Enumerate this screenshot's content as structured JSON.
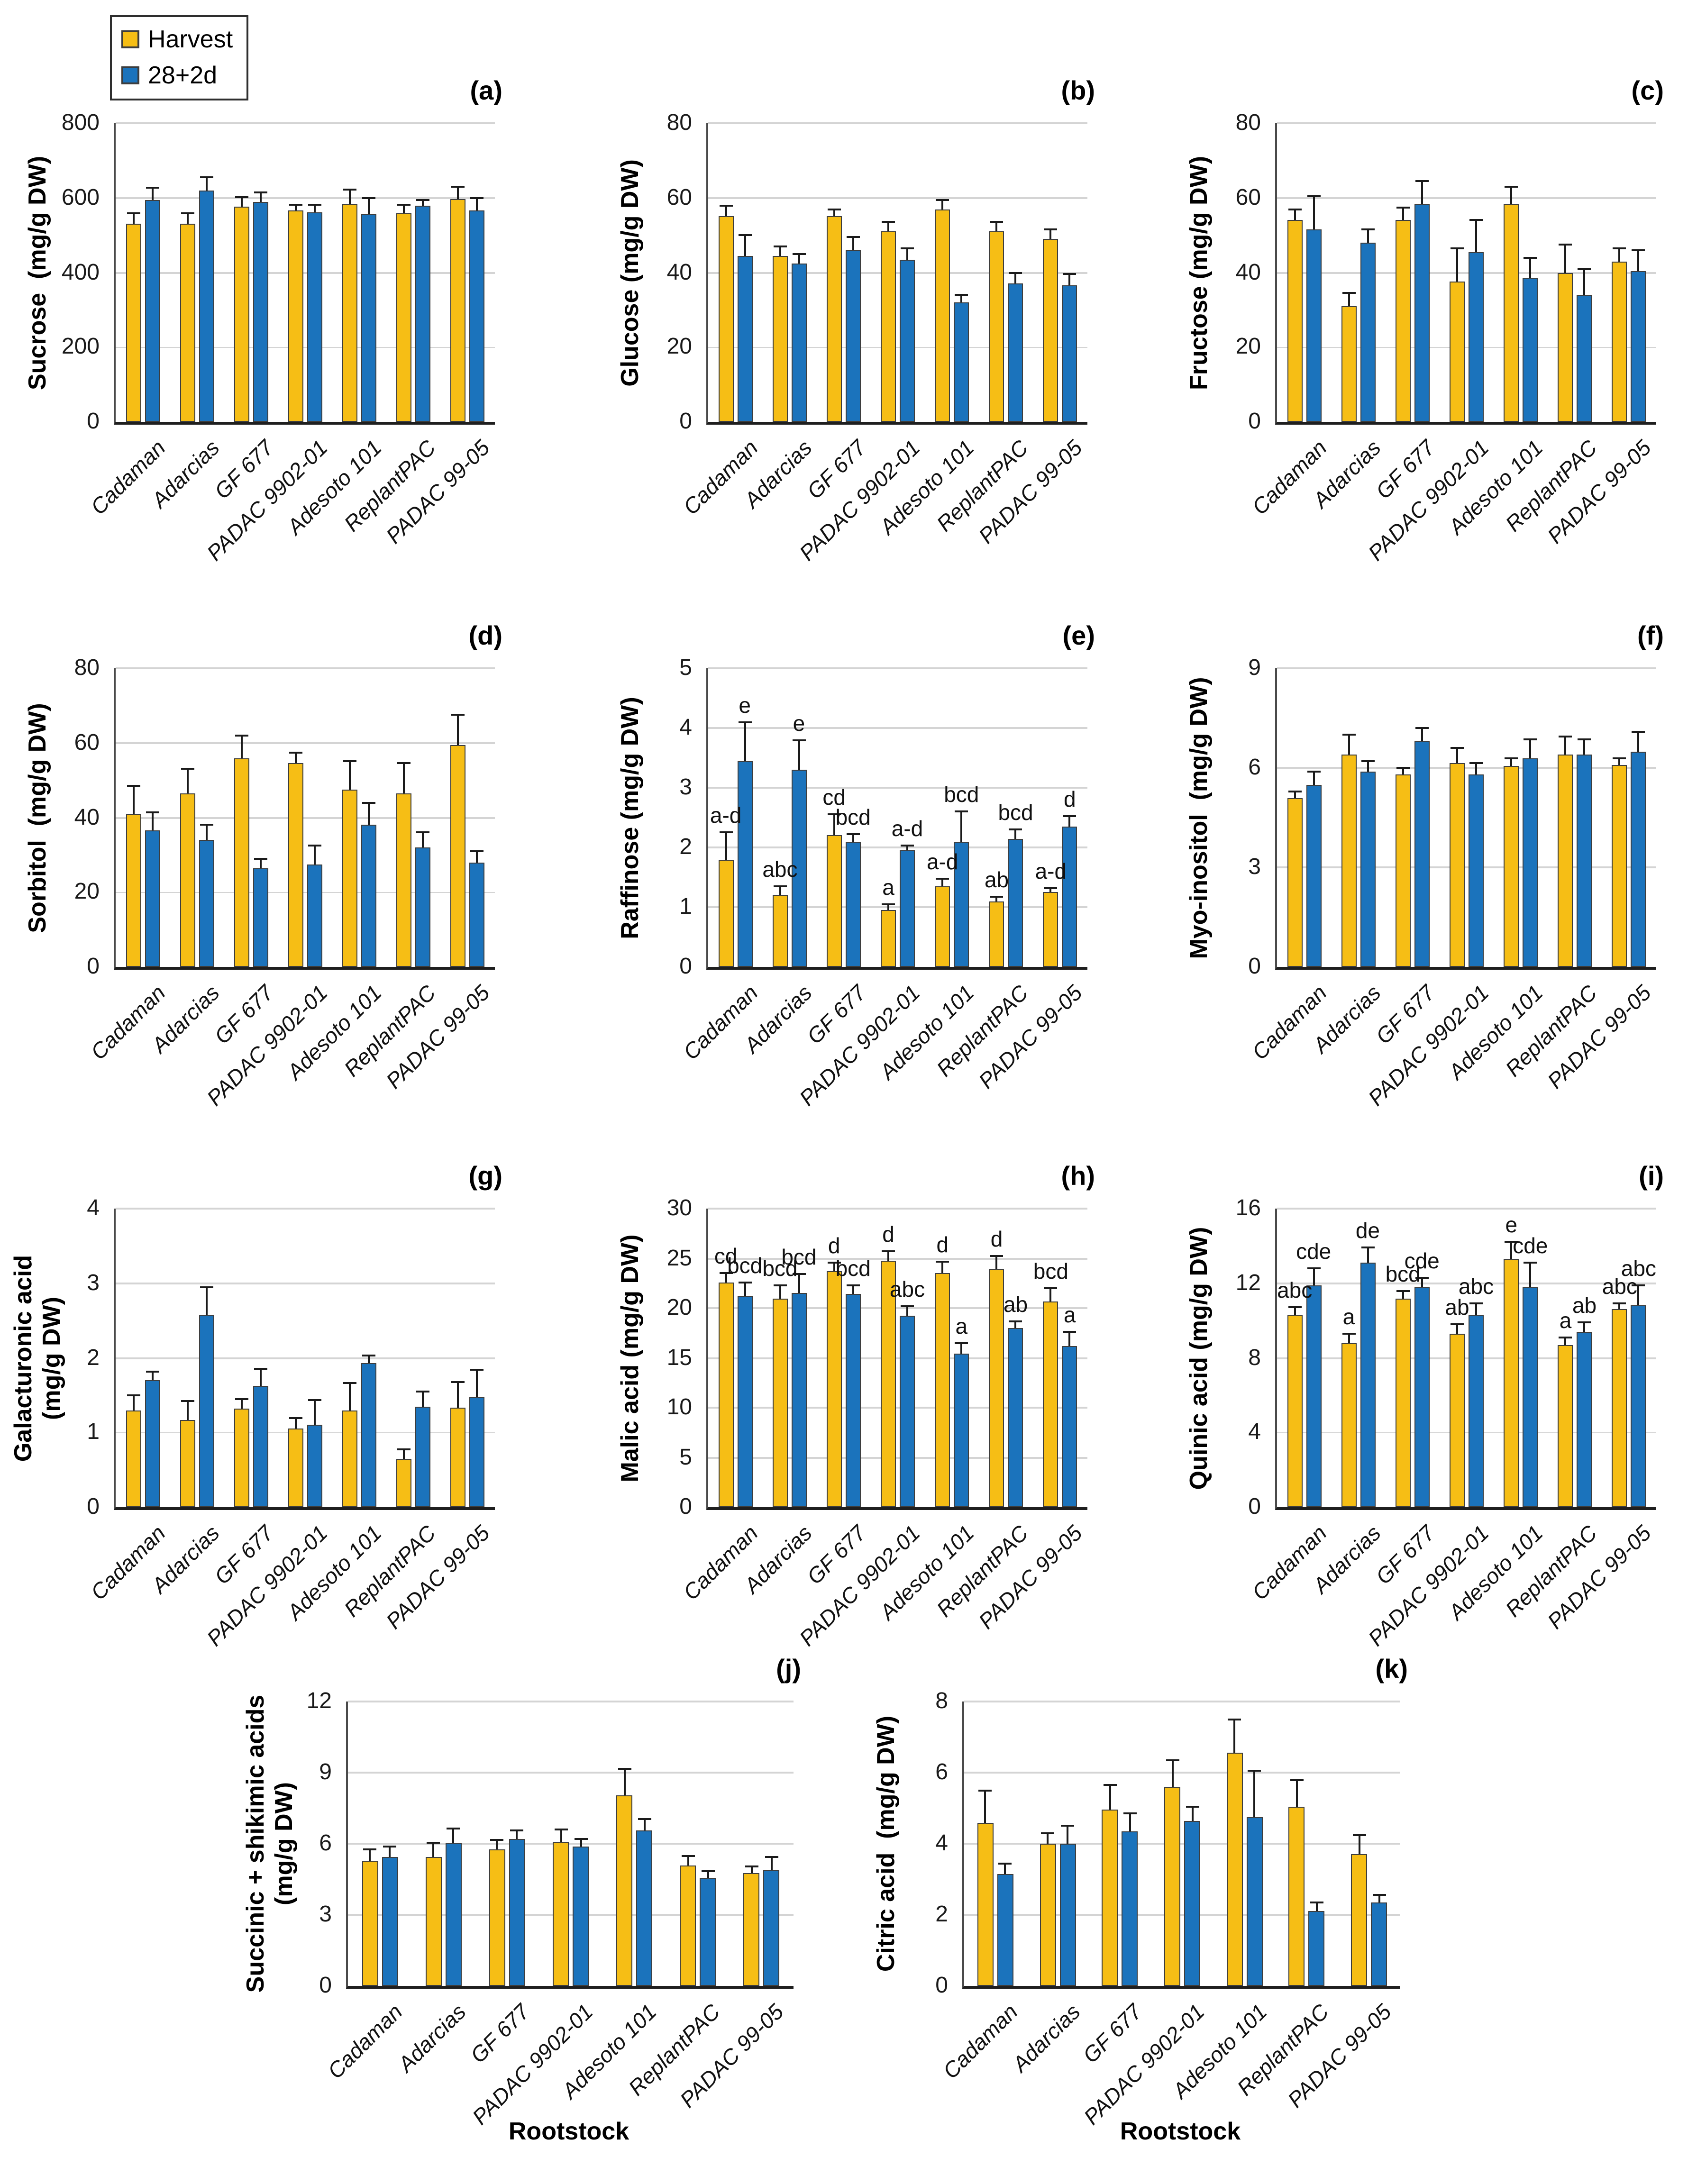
{
  "figure": {
    "background": "#ffffff"
  },
  "legend": {
    "items": [
      {
        "label": "Harvest",
        "color": "#F6BE15"
      },
      {
        "label": "28+2d",
        "color": "#1B73BC"
      }
    ]
  },
  "colors": {
    "harvest_bar": "#F6BE15",
    "day28_bar": "#1B73BC",
    "bar_border": "#3D3D3D",
    "gridline": "#D4D4D4",
    "axis": "#1F1F1F"
  },
  "categories": [
    "Cadaman",
    "Adarcias",
    "GF 677",
    "PADAC 9902-01",
    "Adesoto 101",
    "ReplantPAC",
    "PADAC 99-05"
  ],
  "xlabel": "Rootstock",
  "chart_data": [
    {
      "id": "a",
      "tag": "(a)",
      "type": "bar",
      "ylabel": "Sucrose  (mg/g DW)",
      "ylim": [
        0,
        800
      ],
      "yticks": [
        0,
        200,
        400,
        600,
        800
      ],
      "series": [
        {
          "name": "Harvest",
          "values": [
            530,
            532,
            577,
            566,
            585,
            560,
            597
          ],
          "errors": [
            30,
            28,
            25,
            15,
            37,
            22,
            33
          ]
        },
        {
          "name": "28+2d",
          "values": [
            595,
            620,
            590,
            562,
            555,
            580,
            567
          ],
          "errors": [
            33,
            35,
            25,
            20,
            45,
            15,
            32
          ]
        }
      ]
    },
    {
      "id": "b",
      "tag": "(b)",
      "type": "bar",
      "ylabel": "Glucose (mg/g DW)",
      "ylim": [
        0,
        80
      ],
      "yticks": [
        0,
        20,
        40,
        60,
        80
      ],
      "series": [
        {
          "name": "Harvest",
          "values": [
            55,
            44.5,
            55,
            51,
            57,
            51,
            49
          ],
          "errors": [
            3,
            2.5,
            2,
            2.5,
            2.5,
            2.5,
            2.5
          ]
        },
        {
          "name": "28+2d",
          "values": [
            44.5,
            42.5,
            46,
            43.5,
            32,
            37,
            36.5
          ],
          "errors": [
            5.5,
            2.5,
            3.5,
            3,
            2,
            3,
            3
          ]
        }
      ]
    },
    {
      "id": "c",
      "tag": "(c)",
      "type": "bar",
      "ylabel": "Fructose (mg/g DW)",
      "ylim": [
        0,
        80
      ],
      "yticks": [
        0,
        20,
        40,
        60,
        80
      ],
      "series": [
        {
          "name": "Harvest",
          "values": [
            54,
            31,
            54,
            37.5,
            58.5,
            40,
            43
          ],
          "errors": [
            3,
            3.5,
            3.5,
            9,
            4.5,
            7.5,
            3.5
          ]
        },
        {
          "name": "28+2d",
          "values": [
            51.5,
            48,
            58.5,
            45.5,
            38.5,
            34,
            40.5
          ],
          "errors": [
            9,
            3.5,
            6,
            8.5,
            5.5,
            7,
            5.5
          ]
        }
      ]
    },
    {
      "id": "d",
      "tag": "(d)",
      "type": "bar",
      "ylabel": "Sorbitol  (mg/g DW)",
      "ylim": [
        0,
        80
      ],
      "yticks": [
        0,
        20,
        40,
        60,
        80
      ],
      "series": [
        {
          "name": "Harvest",
          "values": [
            41,
            46.5,
            56,
            54.5,
            47.5,
            46.5,
            59.5
          ],
          "errors": [
            7.5,
            6.5,
            6,
            3,
            7.5,
            8,
            8
          ]
        },
        {
          "name": "28+2d",
          "values": [
            36.5,
            34,
            26.5,
            27.5,
            38,
            32,
            28
          ],
          "errors": [
            5,
            4,
            2.5,
            5,
            6,
            4,
            3
          ]
        }
      ]
    },
    {
      "id": "e",
      "tag": "(e)",
      "type": "bar",
      "ylabel": "Raffinose (mg/g DW)",
      "ylim": [
        0,
        5
      ],
      "yticks": [
        0,
        1,
        2,
        3,
        4,
        5
      ],
      "series": [
        {
          "name": "Harvest",
          "values": [
            1.8,
            1.2,
            2.2,
            0.95,
            1.35,
            1.1,
            1.25
          ],
          "errors": [
            0.45,
            0.15,
            0.35,
            0.1,
            0.13,
            0.07,
            0.07
          ],
          "letters": [
            "a-d",
            "abc",
            "cd",
            "a",
            "a-d",
            "ab",
            "a-d"
          ]
        },
        {
          "name": "28+2d",
          "values": [
            3.45,
            3.3,
            2.1,
            1.95,
            2.1,
            2.15,
            2.35
          ],
          "errors": [
            0.65,
            0.5,
            0.12,
            0.08,
            0.5,
            0.15,
            0.17
          ],
          "letters": [
            "e",
            "e",
            "bcd",
            "a-d",
            "bcd",
            "bcd",
            "d"
          ]
        }
      ]
    },
    {
      "id": "f",
      "tag": "(f)",
      "type": "bar",
      "ylabel": "Myo-inositol  (mg/g DW)",
      "ylim": [
        0,
        9
      ],
      "yticks": [
        0,
        3,
        6,
        9
      ],
      "series": [
        {
          "name": "Harvest",
          "values": [
            5.1,
            6.4,
            5.8,
            6.15,
            6.05,
            6.4,
            6.1
          ],
          "errors": [
            0.2,
            0.6,
            0.2,
            0.45,
            0.25,
            0.55,
            0.2
          ]
        },
        {
          "name": "28+2d",
          "values": [
            5.5,
            5.9,
            6.8,
            5.8,
            6.3,
            6.4,
            6.5
          ],
          "errors": [
            0.4,
            0.3,
            0.4,
            0.35,
            0.55,
            0.45,
            0.6
          ]
        }
      ]
    },
    {
      "id": "g",
      "tag": "(g)",
      "type": "bar",
      "ylabel": "Galacturonic acid\n(mg/g DW)",
      "ylim": [
        0,
        4
      ],
      "yticks": [
        0,
        1,
        2,
        3,
        4
      ],
      "series": [
        {
          "name": "Harvest",
          "values": [
            1.3,
            1.17,
            1.32,
            1.05,
            1.3,
            0.65,
            1.33
          ],
          "errors": [
            0.2,
            0.25,
            0.13,
            0.15,
            0.37,
            0.12,
            0.35
          ]
        },
        {
          "name": "28+2d",
          "values": [
            1.7,
            2.58,
            1.63,
            1.1,
            1.93,
            1.35,
            1.47
          ],
          "errors": [
            0.12,
            0.37,
            0.22,
            0.33,
            0.1,
            0.2,
            0.37
          ]
        }
      ]
    },
    {
      "id": "h",
      "tag": "(h)",
      "type": "bar",
      "ylabel": "Malic acid (mg/g DW)",
      "ylim": [
        0,
        30
      ],
      "yticks": [
        0,
        5,
        10,
        15,
        20,
        25,
        30
      ],
      "series": [
        {
          "name": "Harvest",
          "values": [
            22.6,
            21,
            23.7,
            24.8,
            23.5,
            23.9,
            20.7
          ],
          "errors": [
            0.9,
            1.3,
            0.9,
            0.9,
            1.2,
            1.3,
            1.3
          ],
          "letters": [
            "cd",
            "bcd",
            "d",
            "d",
            "d",
            "d",
            "bcd"
          ]
        },
        {
          "name": "28+2d",
          "values": [
            21.2,
            21.5,
            21.4,
            19.2,
            15.4,
            18,
            16.2
          ],
          "errors": [
            1.4,
            1.9,
            0.9,
            1,
            1.1,
            0.7,
            1.4
          ],
          "letters": [
            "bcd",
            "bcd",
            "bcd",
            "abc",
            "a",
            "ab",
            "a"
          ]
        }
      ]
    },
    {
      "id": "i",
      "tag": "(i)",
      "type": "bar",
      "ylabel": "Quinic acid (mg/g DW)",
      "ylim": [
        0,
        16
      ],
      "yticks": [
        0,
        4,
        8,
        12,
        16
      ],
      "series": [
        {
          "name": "Harvest",
          "values": [
            10.3,
            8.8,
            11.2,
            9.3,
            13.3,
            8.7,
            10.6
          ],
          "errors": [
            0.4,
            0.5,
            0.4,
            0.5,
            0.9,
            0.4,
            0.3
          ],
          "letters": [
            "abc",
            "a",
            "bcd",
            "ab",
            "e",
            "a",
            "abc"
          ]
        },
        {
          "name": "28+2d",
          "values": [
            11.9,
            13.1,
            11.8,
            10.3,
            11.8,
            9.4,
            10.8
          ],
          "errors": [
            0.9,
            0.8,
            0.5,
            0.6,
            1.3,
            0.5,
            1.1
          ],
          "letters": [
            "cde",
            "de",
            "cde",
            "abc",
            "cde",
            "ab",
            "abc"
          ]
        }
      ]
    },
    {
      "id": "j",
      "tag": "(j)",
      "type": "bar",
      "ylabel": "Succinic + shikimic acids\n(mg/g DW)",
      "ylim": [
        0,
        12
      ],
      "yticks": [
        0,
        3,
        6,
        9,
        12
      ],
      "series": [
        {
          "name": "Harvest",
          "values": [
            5.3,
            5.45,
            5.75,
            6.1,
            8.05,
            5.1,
            4.75
          ],
          "errors": [
            0.45,
            0.6,
            0.4,
            0.5,
            1.1,
            0.4,
            0.3
          ]
        },
        {
          "name": "28+2d",
          "values": [
            5.45,
            6.05,
            6.2,
            5.9,
            6.55,
            4.55,
            4.9
          ],
          "errors": [
            0.45,
            0.6,
            0.35,
            0.3,
            0.5,
            0.3,
            0.55
          ]
        }
      ]
    },
    {
      "id": "k",
      "tag": "(k)",
      "type": "bar",
      "ylabel": "Citric acid  (mg/g DW)",
      "ylim": [
        0,
        8
      ],
      "yticks": [
        0,
        2,
        4,
        6,
        8
      ],
      "series": [
        {
          "name": "Harvest",
          "values": [
            4.6,
            4,
            4.95,
            5.6,
            6.55,
            5.05,
            3.7
          ],
          "errors": [
            0.9,
            0.3,
            0.7,
            0.75,
            0.95,
            0.75,
            0.55
          ]
        },
        {
          "name": "28+2d",
          "values": [
            3.15,
            4,
            4.35,
            4.65,
            4.75,
            2.1,
            2.35
          ],
          "errors": [
            0.3,
            0.5,
            0.5,
            0.4,
            1.3,
            0.25,
            0.2
          ]
        }
      ]
    }
  ]
}
